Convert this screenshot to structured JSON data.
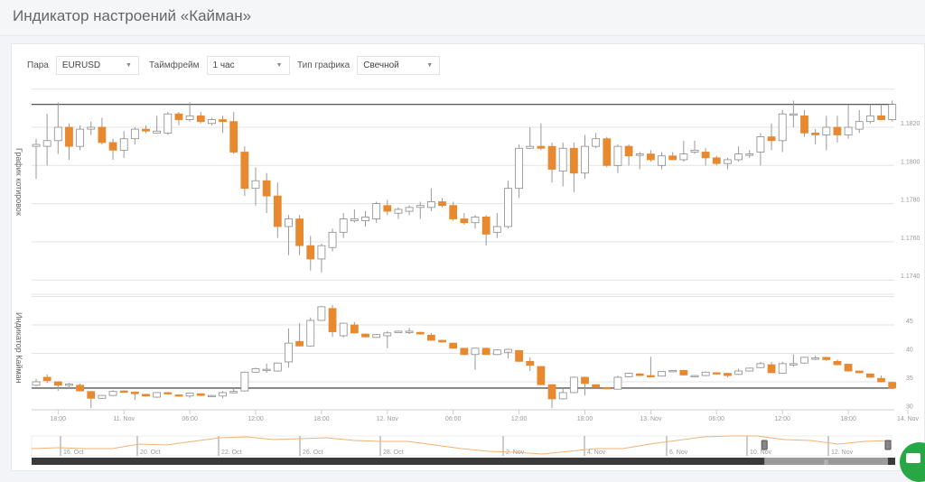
{
  "header": {
    "title": "Индикатор настроений «Кайман»"
  },
  "controls": {
    "pair": {
      "label": "Пара",
      "value": "EURUSD"
    },
    "timeframe": {
      "label": "Таймфрейм",
      "value": "1 час"
    },
    "chart_type": {
      "label": "Тип графика",
      "value": "Свечной"
    }
  },
  "colors": {
    "bearish": "#e8892f",
    "bullish": "#ffffff",
    "outline": "#8a8a8a",
    "level_line": "#555555",
    "navigator_line": "#f0b27a",
    "chat_button": "#27a844"
  },
  "icons": {
    "select": "chevron-down-icon",
    "chat": "chat-bubble-icon",
    "scroll_grip": "grip-icon"
  },
  "chart_data": [
    {
      "type": "candlestick",
      "ylabel": "График котировок",
      "ylim": [
        1.1735,
        1.184
      ],
      "yticks": [
        "1.1820",
        "1.1800",
        "1.1780",
        "1.1760",
        "1.1740"
      ],
      "level": 1.1832,
      "ohlc": [
        [
          1.181,
          1.1814,
          1.1793,
          1.1811
        ],
        [
          1.181,
          1.1827,
          1.18,
          1.1813
        ],
        [
          1.1813,
          1.1833,
          1.1806,
          1.182
        ],
        [
          1.182,
          1.1822,
          1.1803,
          1.181
        ],
        [
          1.181,
          1.1821,
          1.1808,
          1.1819
        ],
        [
          1.1819,
          1.1823,
          1.1816,
          1.182
        ],
        [
          1.182,
          1.1825,
          1.1811,
          1.1812
        ],
        [
          1.1812,
          1.1814,
          1.1803,
          1.1808
        ],
        [
          1.1808,
          1.1818,
          1.1804,
          1.1814
        ],
        [
          1.1814,
          1.182,
          1.1811,
          1.1819
        ],
        [
          1.1819,
          1.1821,
          1.1817,
          1.1818
        ],
        [
          1.1817,
          1.1826,
          1.1817,
          1.1818
        ],
        [
          1.1817,
          1.1828,
          1.1816,
          1.1827
        ],
        [
          1.1827,
          1.1828,
          1.1821,
          1.1824
        ],
        [
          1.1824,
          1.1833,
          1.1823,
          1.1826
        ],
        [
          1.1826,
          1.1828,
          1.1822,
          1.1823
        ],
        [
          1.1822,
          1.1825,
          1.1821,
          1.1824
        ],
        [
          1.1824,
          1.1826,
          1.1817,
          1.1823
        ],
        [
          1.1823,
          1.1828,
          1.1806,
          1.1807
        ],
        [
          1.1807,
          1.181,
          1.1784,
          1.1788
        ],
        [
          1.1788,
          1.1799,
          1.1779,
          1.1792
        ],
        [
          1.1792,
          1.1796,
          1.1775,
          1.1784
        ],
        [
          1.1784,
          1.1791,
          1.1762,
          1.1768
        ],
        [
          1.1768,
          1.1774,
          1.1753,
          1.1772
        ],
        [
          1.1772,
          1.1774,
          1.1753,
          1.1758
        ],
        [
          1.1758,
          1.1763,
          1.1745,
          1.1751
        ],
        [
          1.1751,
          1.1759,
          1.1744,
          1.1758
        ],
        [
          1.1757,
          1.1767,
          1.1755,
          1.1765
        ],
        [
          1.1765,
          1.1775,
          1.1762,
          1.1772
        ],
        [
          1.1771,
          1.1777,
          1.177,
          1.1772
        ],
        [
          1.1771,
          1.1776,
          1.1768,
          1.1773
        ],
        [
          1.1772,
          1.1781,
          1.177,
          1.178
        ],
        [
          1.1779,
          1.1782,
          1.1774,
          1.1776
        ],
        [
          1.1775,
          1.1778,
          1.1772,
          1.1777
        ],
        [
          1.1776,
          1.1779,
          1.1774,
          1.1778
        ],
        [
          1.1778,
          1.1781,
          1.1772,
          1.1779
        ],
        [
          1.1778,
          1.1788,
          1.1776,
          1.1781
        ],
        [
          1.1781,
          1.1783,
          1.1778,
          1.1779
        ],
        [
          1.1779,
          1.1781,
          1.1771,
          1.1772
        ],
        [
          1.1772,
          1.1775,
          1.1769,
          1.177
        ],
        [
          1.177,
          1.1774,
          1.1767,
          1.1773
        ],
        [
          1.1773,
          1.1774,
          1.1758,
          1.1764
        ],
        [
          1.1765,
          1.1775,
          1.1762,
          1.1768
        ],
        [
          1.1768,
          1.1792,
          1.1767,
          1.1788
        ],
        [
          1.1788,
          1.1811,
          1.1783,
          1.1809
        ],
        [
          1.1809,
          1.182,
          1.1809,
          1.181
        ],
        [
          1.181,
          1.1822,
          1.1808,
          1.1809
        ],
        [
          1.181,
          1.1812,
          1.1791,
          1.1798
        ],
        [
          1.1797,
          1.1812,
          1.1789,
          1.1809
        ],
        [
          1.1809,
          1.1812,
          1.1786,
          1.1796
        ],
        [
          1.1796,
          1.1816,
          1.1793,
          1.181
        ],
        [
          1.181,
          1.1817,
          1.1809,
          1.1814
        ],
        [
          1.1814,
          1.1815,
          1.1799,
          1.18
        ],
        [
          1.18,
          1.1811,
          1.1796,
          1.181
        ],
        [
          1.181,
          1.1811,
          1.18,
          1.1805
        ],
        [
          1.1806,
          1.1807,
          1.1798,
          1.1806
        ],
        [
          1.1806,
          1.1808,
          1.1802,
          1.1803
        ],
        [
          1.18,
          1.1807,
          1.1798,
          1.1805
        ],
        [
          1.1805,
          1.1807,
          1.1803,
          1.1803
        ],
        [
          1.1803,
          1.1813,
          1.1802,
          1.1806
        ],
        [
          1.1807,
          1.1813,
          1.1806,
          1.1808
        ],
        [
          1.1807,
          1.1809,
          1.18,
          1.1804
        ],
        [
          1.1804,
          1.1805,
          1.18,
          1.1801
        ],
        [
          1.1801,
          1.1804,
          1.1798,
          1.1803
        ],
        [
          1.1803,
          1.181,
          1.1802,
          1.1806
        ],
        [
          1.1806,
          1.1808,
          1.1804,
          1.1806
        ],
        [
          1.1807,
          1.1817,
          1.18,
          1.1815
        ],
        [
          1.1815,
          1.1822,
          1.1808,
          1.1813
        ],
        [
          1.1813,
          1.1829,
          1.1807,
          1.1827
        ],
        [
          1.1827,
          1.1834,
          1.182,
          1.1827
        ],
        [
          1.1826,
          1.1829,
          1.1815,
          1.1817
        ],
        [
          1.1817,
          1.1819,
          1.1811,
          1.1816
        ],
        [
          1.1816,
          1.1826,
          1.1808,
          1.182
        ],
        [
          1.182,
          1.1826,
          1.1812,
          1.1816
        ],
        [
          1.1816,
          1.1832,
          1.1814,
          1.182
        ],
        [
          1.1819,
          1.1829,
          1.1817,
          1.1823
        ],
        [
          1.1823,
          1.1832,
          1.1822,
          1.1826
        ],
        [
          1.1826,
          1.1832,
          1.1824,
          1.1824
        ],
        [
          1.1824,
          1.1834,
          1.1823,
          1.1832
        ]
      ]
    },
    {
      "type": "candlestick",
      "ylabel": "Индикатор Кайман",
      "ylim": [
        30,
        50
      ],
      "yticks": [
        "45",
        "40",
        "35",
        "30"
      ],
      "level": 33.9,
      "ohlc": [
        [
          34.4,
          35.5,
          34.2,
          35.0
        ],
        [
          35.8,
          36.3,
          34.8,
          35.2
        ],
        [
          35.0,
          35.1,
          33.4,
          34.4
        ],
        [
          34.5,
          34.8,
          33.9,
          34.6
        ],
        [
          34.4,
          34.7,
          33.3,
          33.4
        ],
        [
          33.3,
          33.3,
          30.4,
          32.1
        ],
        [
          32.1,
          32.7,
          32.0,
          32.6
        ],
        [
          32.6,
          33.5,
          32.5,
          33.3
        ],
        [
          33.4,
          33.5,
          33.1,
          33.2
        ],
        [
          33.2,
          33.3,
          31.8,
          32.9
        ],
        [
          32.8,
          32.9,
          32.4,
          32.5
        ],
        [
          32.3,
          33.2,
          32.2,
          33.1
        ],
        [
          33.1,
          33.2,
          32.8,
          32.9
        ],
        [
          32.7,
          32.8,
          32.4,
          32.5
        ],
        [
          32.5,
          33.1,
          32.2,
          33.0
        ],
        [
          32.9,
          33.0,
          32.5,
          32.6
        ],
        [
          32.6,
          32.7,
          32.3,
          32.6
        ],
        [
          32.5,
          33.4,
          32.1,
          33.1
        ],
        [
          33.2,
          33.9,
          33.0,
          33.3
        ],
        [
          33.4,
          36.8,
          33.3,
          36.7
        ],
        [
          36.7,
          37.5,
          36.6,
          37.3
        ],
        [
          37.1,
          38.2,
          36.6,
          37.2
        ],
        [
          36.9,
          38.4,
          36.8,
          38.3
        ],
        [
          38.5,
          44.4,
          37.5,
          41.8
        ],
        [
          42.1,
          45.3,
          41.2,
          41.3
        ],
        [
          41.3,
          46.3,
          41.2,
          45.8
        ],
        [
          45.8,
          48.3,
          45.7,
          48.2
        ],
        [
          47.9,
          48.5,
          42.9,
          43.8
        ],
        [
          43.1,
          45.4,
          42.8,
          45.3
        ],
        [
          45.0,
          45.5,
          43.5,
          43.6
        ],
        [
          43.4,
          43.5,
          42.8,
          42.9
        ],
        [
          42.8,
          43.4,
          42.7,
          43.3
        ],
        [
          43.1,
          43.9,
          40.9,
          43.6
        ],
        [
          43.9,
          44.0,
          43.8,
          43.9
        ],
        [
          43.8,
          44.5,
          43.4,
          43.9
        ],
        [
          43.7,
          43.8,
          43.3,
          43.4
        ],
        [
          43.2,
          43.6,
          42.2,
          42.3
        ],
        [
          42.3,
          42.4,
          41.9,
          42.0
        ],
        [
          41.8,
          41.9,
          40.8,
          40.9
        ],
        [
          40.9,
          40.9,
          39.7,
          39.8
        ],
        [
          39.8,
          41.0,
          37.1,
          40.9
        ],
        [
          40.9,
          41.0,
          39.7,
          39.8
        ],
        [
          39.8,
          40.7,
          39.7,
          40.6
        ],
        [
          40.2,
          40.8,
          39.1,
          40.7
        ],
        [
          40.5,
          40.6,
          38.5,
          38.6
        ],
        [
          38.6,
          39.3,
          36.9,
          37.9
        ],
        [
          37.7,
          37.7,
          34.4,
          34.5
        ],
        [
          34.5,
          34.6,
          30.4,
          32.0
        ],
        [
          32.0,
          33.9,
          31.9,
          33.1
        ],
        [
          33.1,
          35.9,
          33.0,
          35.8
        ],
        [
          35.8,
          35.9,
          32.6,
          34.7
        ],
        [
          34.5,
          34.6,
          33.9,
          34.0
        ],
        [
          34.0,
          34.0,
          33.7,
          33.8
        ],
        [
          33.7,
          36.1,
          33.6,
          35.8
        ],
        [
          35.9,
          36.6,
          35.8,
          36.5
        ],
        [
          36.4,
          36.5,
          36.0,
          36.1
        ],
        [
          36.1,
          39.4,
          35.9,
          36.0
        ],
        [
          36.0,
          36.9,
          35.9,
          36.8
        ],
        [
          37.0,
          37.1,
          36.9,
          37.0
        ],
        [
          37.0,
          37.1,
          36.1,
          36.2
        ],
        [
          36.1,
          36.2,
          36.0,
          36.1
        ],
        [
          36.1,
          36.8,
          36.0,
          36.7
        ],
        [
          36.6,
          36.7,
          36.3,
          36.4
        ],
        [
          36.5,
          36.6,
          35.8,
          36.1
        ],
        [
          36.3,
          37.3,
          36.2,
          36.9
        ],
        [
          36.9,
          37.5,
          36.8,
          37.4
        ],
        [
          37.5,
          38.5,
          37.4,
          38.2
        ],
        [
          38.0,
          38.5,
          36.5,
          36.6
        ],
        [
          36.5,
          38.5,
          36.4,
          38.2
        ],
        [
          38.2,
          39.8,
          37.7,
          38.2
        ],
        [
          38.3,
          39.4,
          38.2,
          39.3
        ],
        [
          39.1,
          39.6,
          38.8,
          39.2
        ],
        [
          39.3,
          39.4,
          38.7,
          38.9
        ],
        [
          38.6,
          38.9,
          37.9,
          38.0
        ],
        [
          38.1,
          38.2,
          36.8,
          36.9
        ],
        [
          36.9,
          37.0,
          36.5,
          36.6
        ],
        [
          36.4,
          36.5,
          35.7,
          35.8
        ],
        [
          35.6,
          36.1,
          34.9,
          35.0
        ],
        [
          34.9,
          35.0,
          33.8,
          33.9
        ]
      ]
    },
    {
      "type": "line",
      "role": "navigator",
      "values": [
        1.172,
        1.173,
        1.172,
        1.172,
        1.177,
        1.176,
        1.18,
        1.184,
        1.185,
        1.182,
        1.183,
        1.184,
        1.181,
        1.18,
        1.18,
        1.176,
        1.172,
        1.169,
        1.168,
        1.166,
        1.169,
        1.172,
        1.172,
        1.177,
        1.181,
        1.185,
        1.186,
        1.186,
        1.182,
        1.181,
        1.177,
        1.18,
        1.181
      ],
      "xticks": [
        "16. Oct",
        "20. Oct",
        "22. Oct",
        "26. Oct",
        "28. Oct",
        "2. Nov",
        "4. Nov",
        "6. Nov",
        "10. Nov",
        "12. Nov"
      ],
      "selection": [
        0.85,
        1.0
      ]
    }
  ],
  "x_axis": {
    "ticks": [
      "18:00",
      "11. Nov",
      "06:00",
      "12:00",
      "18:00",
      "12. Nov",
      "06:00",
      "12:00",
      "18:00",
      "13. Nov",
      "06:00",
      "12:00",
      "18:00",
      "14. Nov"
    ]
  }
}
